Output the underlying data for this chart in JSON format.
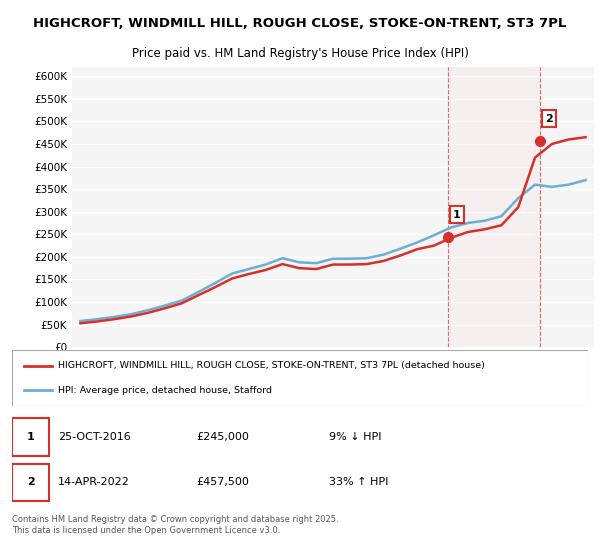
{
  "title_line1": "HIGHCROFT, WINDMILL HILL, ROUGH CLOSE, STOKE-ON-TRENT, ST3 7PL",
  "title_line2": "Price paid vs. HM Land Registry's House Price Index (HPI)",
  "ylabel": "",
  "ylim": [
    0,
    620000
  ],
  "yticks": [
    0,
    50000,
    100000,
    150000,
    200000,
    250000,
    300000,
    350000,
    400000,
    450000,
    500000,
    550000,
    600000
  ],
  "ytick_labels": [
    "£0",
    "£50K",
    "£100K",
    "£150K",
    "£200K",
    "£250K",
    "£300K",
    "£350K",
    "£400K",
    "£450K",
    "£500K",
    "£550K",
    "£600K"
  ],
  "hpi_color": "#6baed6",
  "price_color": "#d73027",
  "marker1_date_x": 2016.82,
  "marker1_y": 245000,
  "marker2_date_x": 2022.29,
  "marker2_y": 457500,
  "vline1_x": 2016.82,
  "vline2_x": 2022.29,
  "annotation1_label": "1",
  "annotation2_label": "2",
  "legend_price_label": "HIGHCROFT, WINDMILL HILL, ROUGH CLOSE, STOKE-ON-TRENT, ST3 7PL (detached house)",
  "legend_hpi_label": "HPI: Average price, detached house, Stafford",
  "note1_date": "25-OCT-2016",
  "note1_price": "£245,000",
  "note1_hpi": "9% ↓ HPI",
  "note2_date": "14-APR-2022",
  "note2_price": "£457,500",
  "note2_hpi": "33% ↑ HPI",
  "copyright_text": "Contains HM Land Registry data © Crown copyright and database right 2025.\nThis data is licensed under the Open Government Licence v3.0.",
  "bg_color": "#ffffff",
  "plot_bg_color": "#f5f5f5",
  "grid_color": "#ffffff",
  "hpi_years": [
    1995,
    1996,
    1997,
    1998,
    1999,
    2000,
    2001,
    2002,
    2003,
    2004,
    2005,
    2006,
    2007,
    2008,
    2009,
    2010,
    2011,
    2012,
    2013,
    2014,
    2015,
    2016,
    2017,
    2018,
    2019,
    2020,
    2021,
    2022,
    2023,
    2024,
    2025
  ],
  "hpi_values": [
    58000,
    62000,
    67000,
    73000,
    82000,
    92000,
    103000,
    122000,
    142000,
    163000,
    173000,
    183000,
    197000,
    188000,
    186000,
    196000,
    196000,
    197000,
    205000,
    218000,
    232000,
    248000,
    265000,
    275000,
    280000,
    290000,
    330000,
    360000,
    355000,
    360000,
    370000
  ],
  "price_years": [
    1995,
    1996,
    1997,
    1998,
    1999,
    2000,
    2001,
    2002,
    2003,
    2004,
    2005,
    2006,
    2007,
    2008,
    2009,
    2010,
    2011,
    2012,
    2013,
    2014,
    2015,
    2016,
    2017,
    2018,
    2019,
    2020,
    2021,
    2022,
    2023,
    2024,
    2025
  ],
  "price_values": [
    53000,
    57000,
    62000,
    68000,
    76000,
    86000,
    97000,
    115000,
    133000,
    152000,
    162000,
    171000,
    184000,
    175000,
    173000,
    183000,
    183000,
    184000,
    191000,
    203000,
    217000,
    225000,
    242000,
    255000,
    261000,
    270000,
    310000,
    420000,
    450000,
    460000,
    465000
  ],
  "xlim_left": 1994.5,
  "xlim_right": 2025.5,
  "xticks": [
    1995,
    1996,
    1997,
    1998,
    1999,
    2000,
    2001,
    2002,
    2003,
    2004,
    2005,
    2006,
    2007,
    2008,
    2009,
    2010,
    2011,
    2012,
    2013,
    2014,
    2015,
    2016,
    2017,
    2018,
    2019,
    2020,
    2021,
    2022,
    2023,
    2024,
    2025
  ],
  "shaded_region_start": 2016.82,
  "shaded_region_end": 2022.29
}
